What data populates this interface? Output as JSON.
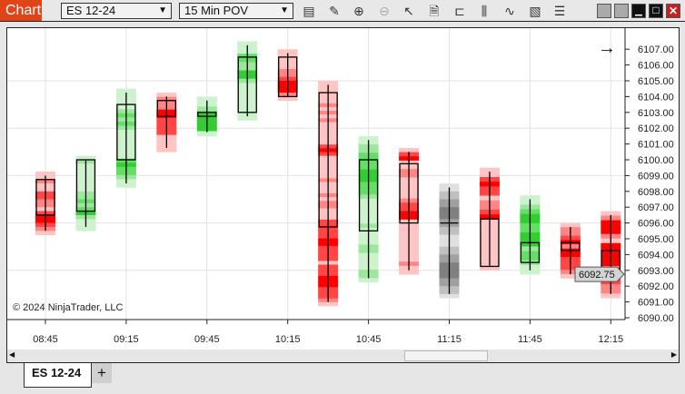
{
  "toolbar": {
    "title": "Chart",
    "instrument": "ES 12-24",
    "interval": "15 Min POV",
    "icons": [
      "data-series-icon",
      "pencil-icon",
      "zoom-in-icon",
      "zoom-out-icon",
      "pointer-icon",
      "properties-icon",
      "templates-icon",
      "bar-chart-icon",
      "indicators-icon",
      "strategies-icon",
      "list-icon"
    ]
  },
  "window": {
    "buttons": [
      "minimize",
      "maximize",
      "close"
    ]
  },
  "chart": {
    "copyright": "© 2024 NinjaTrader, LLC",
    "current_price": "6092.75",
    "colors": {
      "up": "#33cc33",
      "down": "#ff0000",
      "neutral": "#808080",
      "price_marker": "#d4d4d4"
    },
    "price_ticks": [
      "6107.00",
      "6106.00",
      "6105.00",
      "6104.00",
      "6103.00",
      "6102.00",
      "6101.00",
      "6100.00",
      "6099.00",
      "6098.00",
      "6097.00",
      "6096.00",
      "6095.00",
      "6094.00",
      "6093.00",
      "6092.00",
      "6091.00",
      "6090.00"
    ],
    "time_ticks": [
      "08:45",
      "09:15",
      "09:45",
      "10:15",
      "10:45",
      "11:15",
      "11:45",
      "12:15"
    ],
    "candles": [
      {
        "o": 6098.75,
        "h": 6099.0,
        "l": 6095.5,
        "c": 6096.5,
        "dir": "down",
        "profile": "1121133221344321"
      },
      {
        "o": 6096.75,
        "h": 6100.0,
        "l": 6095.75,
        "c": 6100.0,
        "dir": "up",
        "profile": "1211111112232342111"
      },
      {
        "o": 6100.0,
        "h": 6104.25,
        "l": 6098.5,
        "c": 6103.5,
        "dir": "up",
        "profile": "111112323211111113433211"
      },
      {
        "o": 6103.75,
        "h": 6104.0,
        "l": 6100.75,
        "c": 6102.75,
        "dir": "down",
        "profile": "12224433331111"
      },
      {
        "o": 6102.75,
        "h": 6103.75,
        "l": 6101.75,
        "c": 6103.0,
        "dir": "up",
        "profile": "11244441"
      },
      {
        "o": 6103.0,
        "h": 6107.25,
        "l": 6102.75,
        "c": 6106.5,
        "dir": "up",
        "profile": "1113322442111111111"
      },
      {
        "o": 6106.5,
        "h": 6106.75,
        "l": 6104.0,
        "c": 6104.0,
        "dir": "down",
        "profile": "1111122344421"
      },
      {
        "o": 6104.25,
        "h": 6104.75,
        "l": 6091.0,
        "c": 6095.75,
        "dir": "down",
        "profile": "111111212121111113431111112111212211133333443333133344433321"
      },
      {
        "o": 6095.5,
        "h": 6101.25,
        "l": 6092.5,
        "c": 6100.0,
        "dir": "up",
        "profile": "11223333444333211111121111221111221"
      },
      {
        "o": 6099.75,
        "h": 6100.5,
        "l": 6093.0,
        "c": 6096.0,
        "dir": "down",
        "profile": "134112211111233441111111111211"
      },
      {
        "o": 6096.0,
        "h": 6098.25,
        "l": 6091.5,
        "c": 6096.0,
        "dir": "neutral",
        "profile": "11223344433221112233444433221"
      },
      {
        "o": 6096.25,
        "h": 6099.25,
        "l": 6093.25,
        "c": 6093.25,
        "dir": "down",
        "profile": "1134331223411111111111"
      },
      {
        "o": 6093.5,
        "h": 6097.5,
        "l": 6093.0,
        "c": 6094.75,
        "dir": "up",
        "profile": "11234433444233211"
      },
      {
        "o": 6094.75,
        "h": 6095.75,
        "l": 6092.75,
        "c": 6094.25,
        "dir": "down",
        "profile": "1223424433321"
      },
      {
        "o": 6094.25,
        "h": 6096.5,
        "l": 6091.5,
        "c": 6092.75,
        "dir": "down",
        "profile": "1244421444442233221"
      }
    ]
  },
  "tabs": [
    {
      "label": "ES 12-24",
      "active": true
    }
  ],
  "add_tab": "+"
}
